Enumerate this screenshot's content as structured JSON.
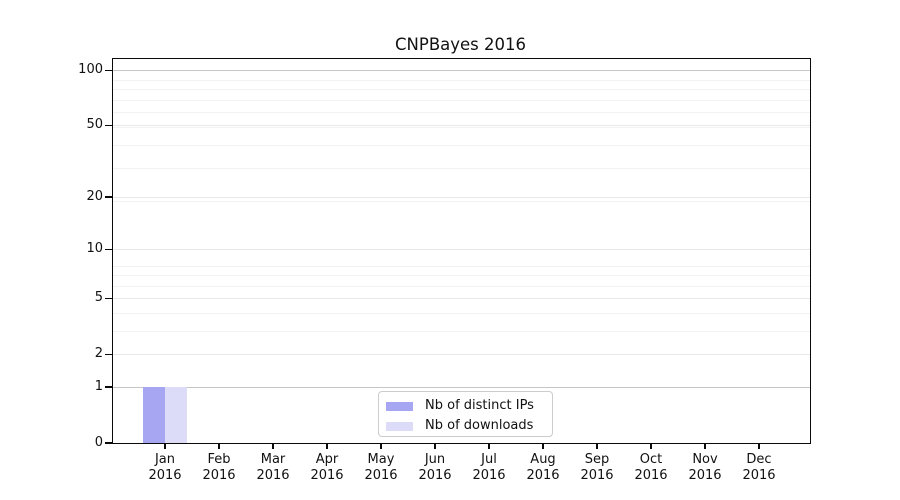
{
  "chart_data": {
    "type": "bar",
    "title": "CNPBayes 2016",
    "categories": [
      "Jan",
      "Feb",
      "Mar",
      "Apr",
      "May",
      "Jun",
      "Jul",
      "Aug",
      "Sep",
      "Oct",
      "Nov",
      "Dec"
    ],
    "category_year": "2016",
    "series": [
      {
        "name": "Nb of distinct IPs",
        "color": "#a6a6f2",
        "values": [
          1,
          0,
          0,
          0,
          0,
          0,
          0,
          0,
          0,
          0,
          0,
          0
        ]
      },
      {
        "name": "Nb of downloads",
        "color": "#dcdcf8",
        "values": [
          1,
          0,
          0,
          0,
          0,
          0,
          0,
          0,
          0,
          0,
          0,
          0
        ]
      }
    ],
    "xlabel": "",
    "ylabel": "",
    "y_scale": "log1p",
    "y_ticks": [
      0,
      1,
      2,
      5,
      10,
      20,
      50,
      100
    ],
    "emphasized_gridlines": [
      1,
      100
    ],
    "ylim": [
      0,
      115
    ],
    "grid": "horizontal",
    "legend_position": "lower-center"
  },
  "colors": {
    "axis": "#0a0a0a",
    "grid_emphasis": "#c6c6c6",
    "grid_major": "#e8e8e8",
    "grid_minor": "#f2f2f2",
    "legend_border": "#cccccc",
    "background": "#ffffff"
  }
}
